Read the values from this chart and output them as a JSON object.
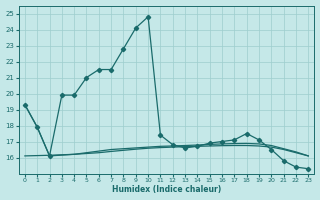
{
  "title": "",
  "xlabel": "Humidex (Indice chaleur)",
  "background_color": "#c5e8e8",
  "grid_color": "#9ecece",
  "line_color": "#1a6b6b",
  "xlim": [
    -0.5,
    23.5
  ],
  "ylim": [
    15,
    25.5
  ],
  "yticks": [
    16,
    17,
    18,
    19,
    20,
    21,
    22,
    23,
    24,
    25
  ],
  "xticks": [
    0,
    1,
    2,
    3,
    4,
    5,
    6,
    7,
    8,
    9,
    10,
    11,
    12,
    13,
    14,
    15,
    16,
    17,
    18,
    19,
    20,
    21,
    22,
    23
  ],
  "line1_x": [
    0,
    1,
    2,
    3,
    4,
    5,
    6,
    7,
    8,
    9,
    10,
    11,
    12,
    13,
    14,
    15,
    16,
    17,
    18,
    19,
    20,
    21,
    22,
    23
  ],
  "line1_y": [
    19.3,
    17.9,
    16.1,
    19.9,
    19.9,
    21.0,
    21.5,
    21.5,
    22.8,
    24.1,
    24.8,
    17.4,
    16.8,
    16.6,
    16.7,
    16.9,
    17.0,
    17.1,
    17.5,
    17.1,
    16.5,
    15.8,
    15.4,
    15.3
  ],
  "line2_x": [
    0,
    1,
    2,
    3,
    4,
    5,
    6,
    7,
    8,
    9,
    10,
    11,
    12,
    13,
    14,
    15,
    16,
    17,
    18,
    19,
    20,
    21,
    22,
    23
  ],
  "line2_y": [
    19.3,
    17.9,
    16.1,
    16.15,
    16.2,
    16.3,
    16.4,
    16.5,
    16.55,
    16.6,
    16.65,
    16.7,
    16.72,
    16.75,
    16.78,
    16.82,
    16.85,
    16.87,
    16.88,
    16.85,
    16.75,
    16.55,
    16.35,
    16.1
  ],
  "line3_x": [
    0,
    1,
    2,
    3,
    4,
    5,
    6,
    7,
    8,
    9,
    10,
    11,
    12,
    13,
    14,
    15,
    16,
    17,
    18,
    19,
    20,
    21,
    22,
    23
  ],
  "line3_y": [
    16.1,
    16.12,
    16.14,
    16.17,
    16.2,
    16.25,
    16.3,
    16.38,
    16.45,
    16.52,
    16.58,
    16.62,
    16.65,
    16.68,
    16.7,
    16.72,
    16.74,
    16.75,
    16.75,
    16.72,
    16.65,
    16.5,
    16.3,
    16.1
  ]
}
